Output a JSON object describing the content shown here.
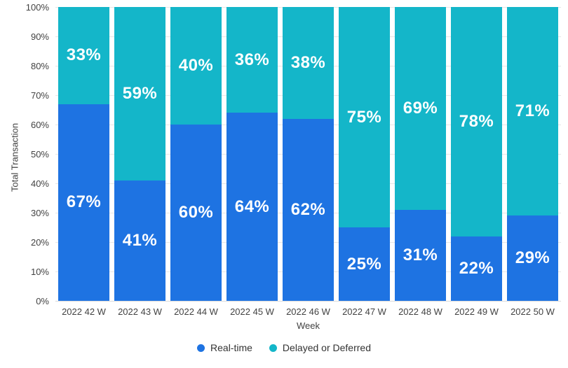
{
  "chart_data": {
    "type": "bar",
    "stacked": true,
    "orientation": "vertical",
    "title": "",
    "xlabel": "Week",
    "ylabel": "Total Transaction",
    "ylim": [
      0,
      100
    ],
    "grid": true,
    "legend_position": "bottom",
    "categories": [
      "2022 42 W",
      "2022 43 W",
      "2022 44 W",
      "2022 45 W",
      "2022 46 W",
      "2022 47 W",
      "2022 48 W",
      "2022 49 W",
      "2022 50 W"
    ],
    "series": [
      {
        "name": "Real-time",
        "color": "#1E73E2",
        "values": [
          67,
          41,
          60,
          64,
          62,
          25,
          31,
          22,
          29
        ],
        "labels": [
          "67%",
          "41%",
          "60%",
          "64%",
          "62%",
          "25%",
          "31%",
          "22%",
          "29%"
        ]
      },
      {
        "name": "Delayed or Deferred",
        "color": "#14B6C9",
        "values": [
          33,
          59,
          40,
          36,
          38,
          75,
          69,
          78,
          71
        ],
        "labels": [
          "33%",
          "59%",
          "40%",
          "36%",
          "38%",
          "75%",
          "69%",
          "78%",
          "71%"
        ]
      }
    ],
    "yticks": [
      "0%",
      "10%",
      "20%",
      "30%",
      "40%",
      "50%",
      "60%",
      "70%",
      "80%",
      "90%",
      "100%"
    ]
  },
  "colors": {
    "background": "#FFFFFF",
    "grid": "#E6E6E6",
    "axis_text": "#424242",
    "legend_text": "#333333",
    "bar_label": "#FFFFFF"
  }
}
